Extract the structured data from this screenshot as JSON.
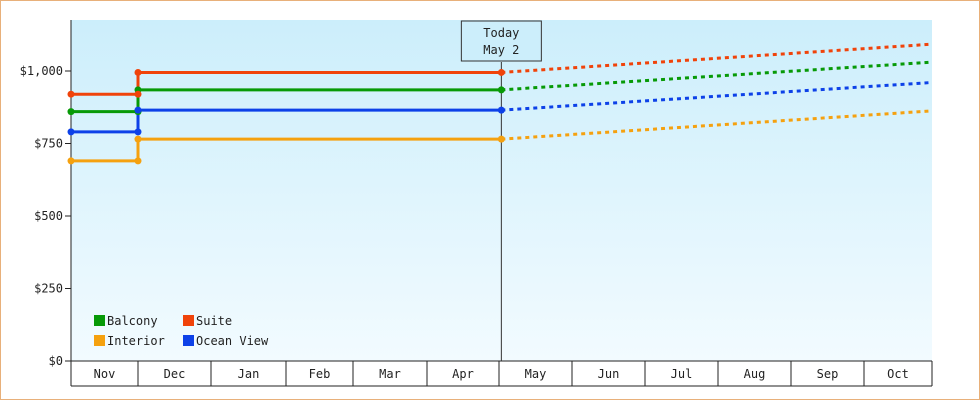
{
  "chart_data": {
    "type": "line",
    "x_categories": [
      "Nov",
      "Dec",
      "Jan",
      "Feb",
      "Mar",
      "Apr",
      "May",
      "Jun",
      "Jul",
      "Aug",
      "Sep",
      "Oct"
    ],
    "y_ticks": [
      {
        "value": 0,
        "label": "$0"
      },
      {
        "value": 250,
        "label": "$250"
      },
      {
        "value": 500,
        "label": "$500"
      },
      {
        "value": 750,
        "label": "$750"
      },
      {
        "value": 1000,
        "label": "$1,000"
      }
    ],
    "ylim": [
      0,
      1000
    ],
    "today_marker": {
      "line1": "Today",
      "line2": "May 2",
      "date": "May 2"
    },
    "legend_placement": "bottom-left",
    "series": [
      {
        "name": "Balcony",
        "color": "#079a07",
        "history": [
          [
            "Nov 1",
            860
          ],
          [
            "Dec 1",
            860
          ],
          [
            "Dec 1",
            935
          ],
          [
            "May 2",
            935
          ]
        ],
        "forecast": [
          [
            "May 2",
            935
          ],
          [
            "Oct 31",
            1030
          ]
        ]
      },
      {
        "name": "Suite",
        "color": "#f0430a",
        "history": [
          [
            "Nov 1",
            920
          ],
          [
            "Dec 1",
            920
          ],
          [
            "Dec 1",
            995
          ],
          [
            "May 2",
            995
          ]
        ],
        "forecast": [
          [
            "May 2",
            995
          ],
          [
            "Oct 31",
            1092
          ]
        ]
      },
      {
        "name": "Interior",
        "color": "#f5a10f",
        "history": [
          [
            "Nov 1",
            690
          ],
          [
            "Dec 1",
            690
          ],
          [
            "Dec 1",
            765
          ],
          [
            "May 2",
            765
          ]
        ],
        "forecast": [
          [
            "May 2",
            765
          ],
          [
            "Oct 31",
            862
          ]
        ]
      },
      {
        "name": "Ocean View",
        "color": "#0d41e8",
        "history": [
          [
            "Nov 1",
            790
          ],
          [
            "Dec 1",
            790
          ],
          [
            "Dec 1",
            865
          ],
          [
            "May 2",
            865
          ]
        ],
        "forecast": [
          [
            "May 2",
            865
          ],
          [
            "Oct 31",
            960
          ]
        ]
      }
    ],
    "grid": false
  }
}
